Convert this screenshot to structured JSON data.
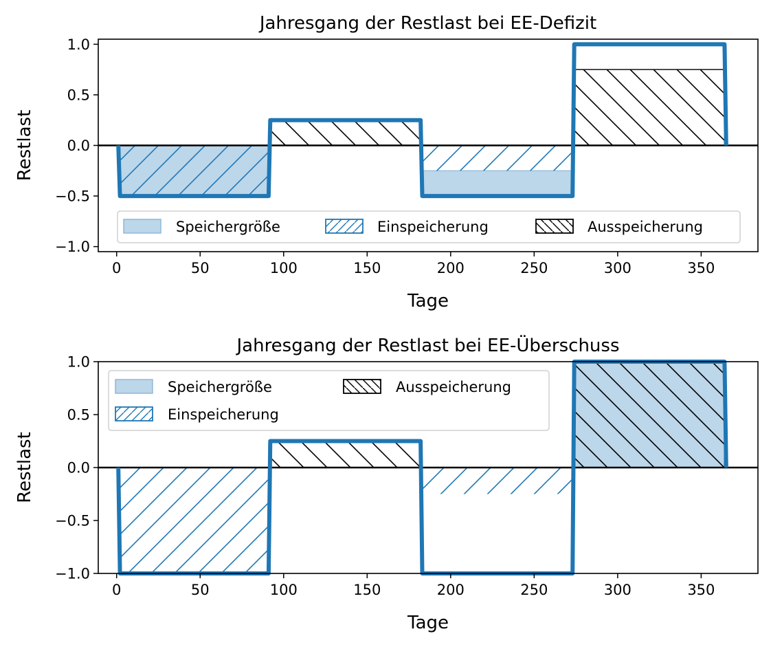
{
  "colors": {
    "line": "#1f77b4",
    "storage_fill": "#bcd6ea",
    "storage_edge": "#8fb8d8",
    "charge_hatch": "#1f77b4",
    "discharge_hatch": "#000000",
    "zero_line": "#000000"
  },
  "chart_data": [
    {
      "type": "area",
      "title": "Jahresgang der Restlast bei EE-Defizit",
      "xlabel": "Tage",
      "ylabel": "Restlast",
      "xlim": [
        -11,
        384
      ],
      "ylim": [
        -1.05,
        1.05
      ],
      "x_ticks": [
        0,
        50,
        100,
        150,
        200,
        250,
        300,
        350
      ],
      "y_ticks": [
        1.0,
        0.5,
        0.0,
        -0.5,
        -1.0
      ],
      "y_tick_labels": [
        "1.0",
        "0.5",
        "0.0",
        "−0.5",
        "−1.0"
      ],
      "grid": false,
      "legend_placement": "lower-center",
      "legend_columns": 3,
      "legend": [
        "Speichergröße",
        "Einspeicherung",
        "Ausspeicherung"
      ],
      "restlast_series": {
        "x": [
          1,
          2,
          91,
          92,
          182,
          183,
          273,
          274,
          364,
          365
        ],
        "y": [
          0,
          -0.5,
          -0.5,
          0.25,
          0.25,
          -0.5,
          -0.5,
          1.0,
          1.0,
          0
        ]
      },
      "speichergroesse": [
        {
          "x0": 2,
          "x1": 91,
          "y0": -0.5,
          "y1": 0
        },
        {
          "x0": 183,
          "x1": 273,
          "y0": -0.5,
          "y1": -0.25
        }
      ],
      "einspeicherung": [
        {
          "x0": 2,
          "x1": 91,
          "y0": -0.5,
          "y1": 0
        },
        {
          "x0": 183,
          "x1": 273,
          "y0": -0.25,
          "y1": 0
        }
      ],
      "ausspeicherung": [
        {
          "x0": 92,
          "x1": 182,
          "y0": 0,
          "y1": 0.25
        },
        {
          "x0": 274,
          "x1": 364,
          "y0": 0,
          "y1": 0.75
        }
      ]
    },
    {
      "type": "area",
      "title": "Jahresgang der Restlast bei EE-Überschuss",
      "xlabel": "Tage",
      "ylabel": "Restlast",
      "xlim": [
        -11,
        384
      ],
      "ylim": [
        -1.0,
        1.0
      ],
      "x_ticks": [
        0,
        50,
        100,
        150,
        200,
        250,
        300,
        350
      ],
      "y_ticks": [
        1.0,
        0.5,
        0.0,
        -0.5,
        -1.0
      ],
      "y_tick_labels": [
        "1.0",
        "0.5",
        "0.0",
        "−0.5",
        "−1.0"
      ],
      "grid": false,
      "legend_placement": "upper-left",
      "legend_columns": 2,
      "legend": [
        "Speichergröße",
        "Einspeicherung",
        "Ausspeicherung"
      ],
      "restlast_series": {
        "x": [
          1,
          2,
          91,
          92,
          182,
          183,
          273,
          274,
          364,
          365
        ],
        "y": [
          0,
          -1.0,
          -1.0,
          0.25,
          0.25,
          -1.0,
          -1.0,
          1.0,
          1.0,
          0
        ]
      },
      "speichergroesse": [
        {
          "x0": 274,
          "x1": 364,
          "y0": 0,
          "y1": 1.0
        }
      ],
      "einspeicherung": [
        {
          "x0": 2,
          "x1": 91,
          "y0": -1.0,
          "y1": 0
        },
        {
          "x0": 183,
          "x1": 273,
          "y0": -0.25,
          "y1": 0
        }
      ],
      "ausspeicherung": [
        {
          "x0": 92,
          "x1": 182,
          "y0": 0,
          "y1": 0.25
        },
        {
          "x0": 274,
          "x1": 364,
          "y0": 0,
          "y1": 1.0
        }
      ]
    }
  ]
}
